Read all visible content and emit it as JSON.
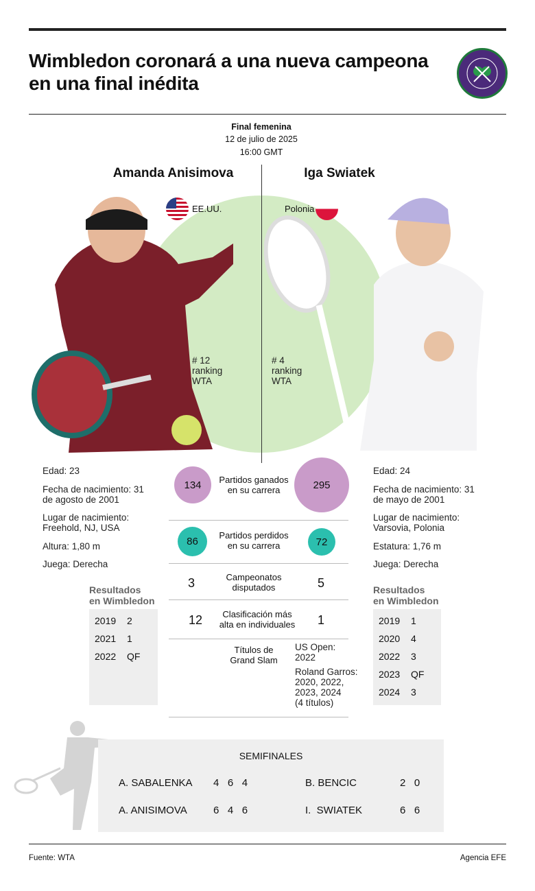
{
  "header": {
    "title_line1": "Wimbledon coronará a una nueva campeona",
    "title_line2": "en una final inédita",
    "logo_text": "THE CHAMPIONSHIPS · WIMBLEDON"
  },
  "event": {
    "label": "Final femenina",
    "date": "12 de julio de 2025",
    "time": "16:00 GMT"
  },
  "players": [
    {
      "name": "Amanda Anisimova",
      "country": "EE.UU.",
      "ranking_line1": "# 12",
      "ranking_line2": "ranking",
      "ranking_line3": "WTA",
      "age": "Edad: 23",
      "birth_l1": "Fecha de nacimiento: 31",
      "birth_l2": "de agosto de 2001",
      "place_l1": "Lugar de nacimiento:",
      "place_l2": "Freehold, NJ, USA",
      "height": "Altura: 1,80 m",
      "hand": "Juega: Derecha",
      "results_l1": "Resultados",
      "results_l2": "en Wimbledon",
      "results": [
        {
          "year": "2019",
          "result": "2"
        },
        {
          "year": "2021",
          "result": "1"
        },
        {
          "year": "2022",
          "result": "QF"
        }
      ]
    },
    {
      "name": "Iga Swiatek",
      "country": "Polonia",
      "ranking_line1": "# 4",
      "ranking_line2": "ranking",
      "ranking_line3": "WTA",
      "age": "Edad: 24",
      "birth_l1": "Fecha de nacimiento: 31",
      "birth_l2": "de mayo de 2001",
      "place_l1": "Lugar de nacimiento:",
      "place_l2": "Varsovia, Polonia",
      "height": "Estatura: 1,76 m",
      "hand": "Juega: Derecha",
      "results_l1": "Resultados",
      "results_l2": "en Wimbledon",
      "results": [
        {
          "year": "2019",
          "result": "1"
        },
        {
          "year": "2020",
          "result": "4"
        },
        {
          "year": "2022",
          "result": "3"
        },
        {
          "year": "2023",
          "result": "QF"
        },
        {
          "year": "2024",
          "result": "3"
        }
      ]
    }
  ],
  "stats": [
    {
      "label_l1": "Partidos ganados",
      "label_l2": "en su carrera",
      "left": "134",
      "right": "295"
    },
    {
      "label_l1": "Partidos perdidos",
      "label_l2": "en su carrera",
      "left": "86",
      "right": "72"
    },
    {
      "label_l1": "Campeonatos",
      "label_l2": "disputados",
      "left": "3",
      "right": "5"
    },
    {
      "label_l1": "Clasificación más",
      "label_l2": "alta en individuales",
      "left": "12",
      "right": "1"
    }
  ],
  "grand_slam": {
    "label_l1": "Títulos de",
    "label_l2": "Grand Slam",
    "right_l1": "US Open:",
    "right_l2": "2022",
    "right_l3": "Roland Garros:",
    "right_l4": "2020, 2022,",
    "right_l5": "2023, 2024",
    "right_l6": "(4 títulos)"
  },
  "semifinals": {
    "title": "SEMIFINALES",
    "match1": [
      {
        "name": "A. SABALENKA",
        "sets": "4   6   4"
      },
      {
        "name": "A. ANISIMOVA",
        "sets": "6   4   6"
      }
    ],
    "match2": [
      {
        "name": "B. BENCIC",
        "sets": "2   0"
      },
      {
        "name": "I.  SWIATEK",
        "sets": "6   6"
      }
    ]
  },
  "footer": {
    "source": "Fuente: WTA",
    "agency": "Agencia EFE"
  },
  "colors": {
    "green_circle": "#d3ebc4",
    "won": "#c99bc9",
    "lost": "#2bbfae",
    "logo": "#4b2a7a"
  }
}
